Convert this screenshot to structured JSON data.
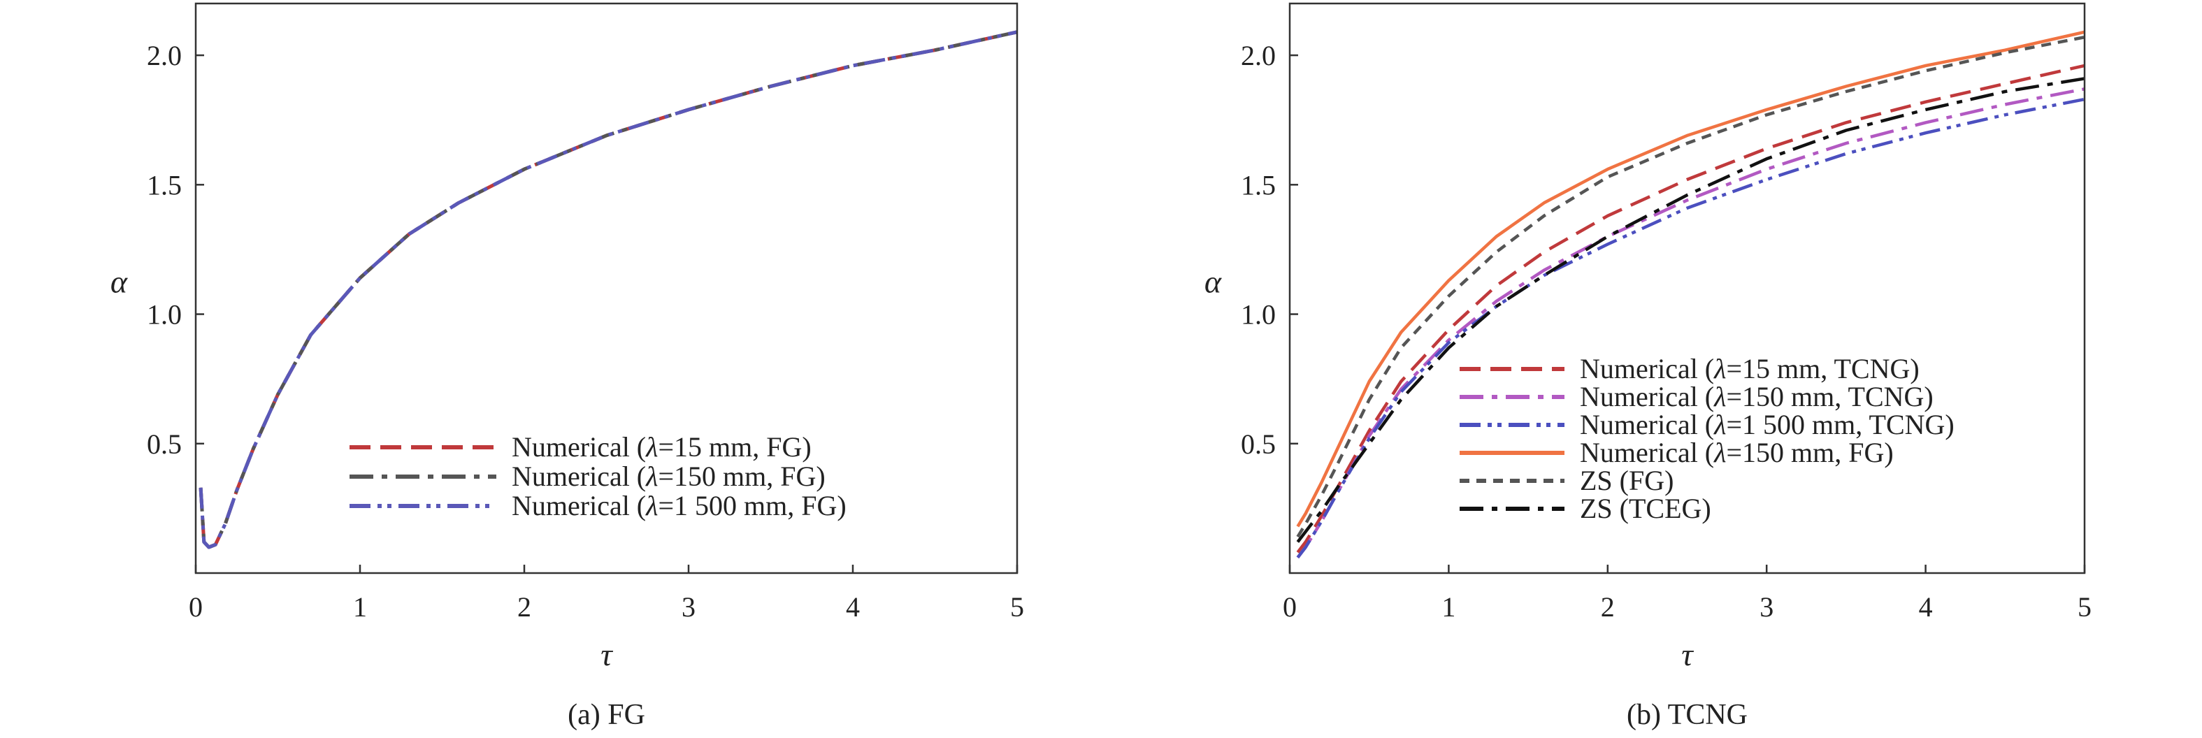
{
  "chart_data": [
    {
      "type": "line",
      "caption": "(a) FG",
      "xlabel": "τ",
      "ylabel": "α",
      "xlim": [
        0,
        5
      ],
      "ylim": [
        0,
        2.2
      ],
      "xticks": [
        "0",
        "1",
        "2",
        "3",
        "4",
        "5"
      ],
      "yticks": [
        "0.5",
        "1.0",
        "1.5",
        "2.0"
      ],
      "legend_position": "lower-right",
      "series": [
        {
          "name_prefix": "Numerical (",
          "name_symbol": "λ",
          "name_suffix": "=15 mm, FG)",
          "color": "#c0393b",
          "dash": "dashed",
          "x": [
            0.03,
            0.05,
            0.08,
            0.12,
            0.18,
            0.25,
            0.35,
            0.5,
            0.7,
            1.0,
            1.3,
            1.6,
            2.0,
            2.5,
            3.0,
            3.5,
            4.0,
            4.5,
            5.0
          ],
          "y": [
            0.33,
            0.12,
            0.1,
            0.11,
            0.19,
            0.32,
            0.48,
            0.69,
            0.92,
            1.14,
            1.31,
            1.43,
            1.56,
            1.69,
            1.79,
            1.88,
            1.96,
            2.02,
            2.09
          ]
        },
        {
          "name_prefix": "Numerical (",
          "name_symbol": "λ",
          "name_suffix": "=150 mm, FG)",
          "color": "#555555",
          "dash": "dashdot",
          "x": [
            0.03,
            0.05,
            0.08,
            0.12,
            0.18,
            0.25,
            0.35,
            0.5,
            0.7,
            1.0,
            1.3,
            1.6,
            2.0,
            2.5,
            3.0,
            3.5,
            4.0,
            4.5,
            5.0
          ],
          "y": [
            0.33,
            0.12,
            0.1,
            0.11,
            0.19,
            0.32,
            0.48,
            0.69,
            0.92,
            1.14,
            1.31,
            1.43,
            1.56,
            1.69,
            1.79,
            1.88,
            1.96,
            2.02,
            2.09
          ]
        },
        {
          "name_prefix": "Numerical (",
          "name_symbol": "λ",
          "name_suffix": "=1 500 mm, FG)",
          "color": "#5a58b8",
          "dash": "dashdotdot",
          "x": [
            0.03,
            0.05,
            0.08,
            0.12,
            0.18,
            0.25,
            0.35,
            0.5,
            0.7,
            1.0,
            1.3,
            1.6,
            2.0,
            2.5,
            3.0,
            3.5,
            4.0,
            4.5,
            5.0
          ],
          "y": [
            0.33,
            0.12,
            0.1,
            0.11,
            0.19,
            0.32,
            0.48,
            0.69,
            0.92,
            1.14,
            1.31,
            1.43,
            1.56,
            1.69,
            1.79,
            1.88,
            1.96,
            2.02,
            2.09
          ]
        }
      ]
    },
    {
      "type": "line",
      "caption": "(b) TCNG",
      "xlabel": "τ",
      "ylabel": "α",
      "xlim": [
        0,
        5
      ],
      "ylim": [
        0,
        2.2
      ],
      "xticks": [
        "0",
        "1",
        "2",
        "3",
        "4",
        "5"
      ],
      "yticks": [
        "0.5",
        "1.0",
        "1.5",
        "2.0"
      ],
      "legend_position": "lower-right",
      "series": [
        {
          "name_prefix": "Numerical (",
          "name_symbol": "λ",
          "name_suffix": "=15 mm, TCNG)",
          "color": "#c0393b",
          "dash": "dashed",
          "x": [
            0.05,
            0.1,
            0.2,
            0.3,
            0.5,
            0.7,
            1.0,
            1.3,
            1.6,
            2.0,
            2.5,
            3.0,
            3.5,
            4.0,
            4.5,
            5.0
          ],
          "y": [
            0.08,
            0.12,
            0.22,
            0.33,
            0.55,
            0.74,
            0.94,
            1.11,
            1.24,
            1.38,
            1.52,
            1.64,
            1.74,
            1.82,
            1.89,
            1.96
          ]
        },
        {
          "name_prefix": "Numerical (",
          "name_symbol": "λ",
          "name_suffix": "=150 mm, TCNG)",
          "color": "#b259c2",
          "dash": "dashdot",
          "x": [
            0.05,
            0.1,
            0.2,
            0.3,
            0.5,
            0.7,
            1.0,
            1.3,
            1.6,
            2.0,
            2.5,
            3.0,
            3.5,
            4.0,
            4.5,
            5.0
          ],
          "y": [
            0.06,
            0.1,
            0.2,
            0.31,
            0.53,
            0.71,
            0.9,
            1.05,
            1.17,
            1.3,
            1.44,
            1.56,
            1.66,
            1.74,
            1.81,
            1.87
          ]
        },
        {
          "name_prefix": "Numerical (",
          "name_symbol": "λ",
          "name_suffix": "=1 500 mm, TCNG)",
          "color": "#4b4fbf",
          "dash": "dashdotdot",
          "x": [
            0.05,
            0.1,
            0.2,
            0.3,
            0.5,
            0.7,
            1.0,
            1.3,
            1.6,
            2.0,
            2.5,
            3.0,
            3.5,
            4.0,
            4.5,
            5.0
          ],
          "y": [
            0.06,
            0.1,
            0.2,
            0.31,
            0.52,
            0.7,
            0.89,
            1.03,
            1.15,
            1.27,
            1.41,
            1.52,
            1.62,
            1.7,
            1.77,
            1.83
          ]
        },
        {
          "name_prefix": "Numerical (",
          "name_symbol": "λ",
          "name_suffix": "=150 mm, FG)",
          "color": "#f07342",
          "dash": "solid",
          "x": [
            0.05,
            0.1,
            0.2,
            0.3,
            0.5,
            0.7,
            1.0,
            1.3,
            1.6,
            2.0,
            2.5,
            3.0,
            3.5,
            4.0,
            4.5,
            5.0
          ],
          "y": [
            0.18,
            0.23,
            0.35,
            0.48,
            0.74,
            0.93,
            1.13,
            1.3,
            1.43,
            1.56,
            1.69,
            1.79,
            1.88,
            1.96,
            2.02,
            2.09
          ]
        },
        {
          "name_prefix": "ZS (FG)",
          "name_symbol": "",
          "name_suffix": "",
          "color": "#555555",
          "dash": "shortdash",
          "x": [
            0.05,
            0.1,
            0.2,
            0.3,
            0.5,
            0.7,
            1.0,
            1.3,
            1.6,
            2.0,
            2.5,
            3.0,
            3.5,
            4.0,
            4.5,
            5.0
          ],
          "y": [
            0.14,
            0.19,
            0.3,
            0.42,
            0.67,
            0.87,
            1.07,
            1.24,
            1.38,
            1.53,
            1.66,
            1.77,
            1.86,
            1.94,
            2.01,
            2.07
          ]
        },
        {
          "name_prefix": "ZS (TCEG)",
          "name_symbol": "",
          "name_suffix": "",
          "color": "#111111",
          "dash": "dashdot",
          "x": [
            0.05,
            0.1,
            0.2,
            0.3,
            0.5,
            0.7,
            1.0,
            1.3,
            1.6,
            2.0,
            2.5,
            3.0,
            3.5,
            4.0,
            4.5,
            5.0
          ],
          "y": [
            0.12,
            0.16,
            0.24,
            0.33,
            0.5,
            0.67,
            0.87,
            1.03,
            1.15,
            1.3,
            1.46,
            1.6,
            1.71,
            1.79,
            1.86,
            1.91
          ]
        }
      ]
    }
  ]
}
